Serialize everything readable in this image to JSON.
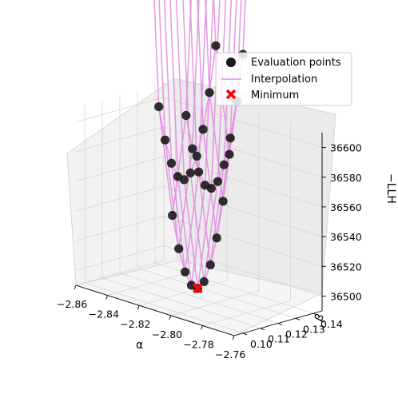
{
  "chart_data": {
    "type": "scatter",
    "projection": "3d",
    "title": "",
    "xlabel": "α",
    "ylabel": "β",
    "zlabel": "−LLH",
    "x_ticks": [
      "−2.86",
      "−2.84",
      "−2.82",
      "−2.80",
      "−2.78",
      "−2.76"
    ],
    "y_ticks": [
      "0.10",
      "0.11",
      "0.12",
      "0.13",
      "0.14"
    ],
    "z_ticks": [
      "36500",
      "36520",
      "36540",
      "36560",
      "36580",
      "36600"
    ],
    "xlim": [
      -2.86,
      -2.76
    ],
    "ylim": [
      0.095,
      0.145
    ],
    "zlim": [
      36490,
      36610
    ],
    "grid": true,
    "alpha_values": [
      -2.8533,
      -2.8447,
      -2.8361,
      -2.8275,
      -2.8189,
      -2.8104,
      -2.8018,
      -2.7932,
      -2.7846,
      -2.776,
      -2.7674,
      -2.7588
    ],
    "beta_values": [
      0.0975,
      0.1011,
      0.1047,
      0.1083,
      0.1119,
      0.1155,
      0.1191,
      0.1227,
      0.1263,
      0.1299
    ],
    "series": [
      {
        "name": "Evaluation points",
        "kind": "scatter",
        "color": "#1a1a1a"
      },
      {
        "name": "Interpolation",
        "kind": "line",
        "color": "#e08ee0"
      },
      {
        "name": "Minimum",
        "kind": "marker-x",
        "color": "#ff0000"
      }
    ],
    "minimum": {
      "alpha": -2.8018,
      "beta": 0.1119,
      "value": 36502
    },
    "legend_position": "upper-right"
  }
}
